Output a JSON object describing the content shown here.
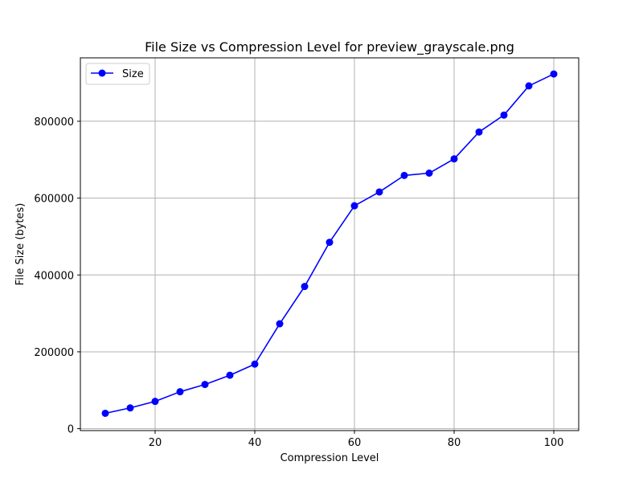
{
  "chart_data": {
    "type": "line",
    "title": "File Size vs Compression Level for preview_grayscale.png",
    "xlabel": "Compression Level",
    "ylabel": "File Size (bytes)",
    "xlim": [
      5,
      105
    ],
    "ylim": [
      -5000,
      965000
    ],
    "xticks": [
      20,
      40,
      60,
      80,
      100
    ],
    "yticks": [
      0,
      200000,
      400000,
      600000,
      800000
    ],
    "grid": true,
    "legend_position": "top-left",
    "series": [
      {
        "name": "Size",
        "color": "#0000ff",
        "marker": "circle",
        "x": [
          10,
          15,
          20,
          25,
          30,
          35,
          40,
          45,
          50,
          55,
          60,
          65,
          70,
          75,
          80,
          85,
          90,
          95,
          100
        ],
        "y": [
          40000,
          54000,
          71000,
          96000,
          115000,
          139000,
          168000,
          273000,
          370000,
          485000,
          580000,
          616000,
          659000,
          665000,
          702000,
          772000,
          816000,
          892000,
          923000
        ]
      }
    ]
  }
}
